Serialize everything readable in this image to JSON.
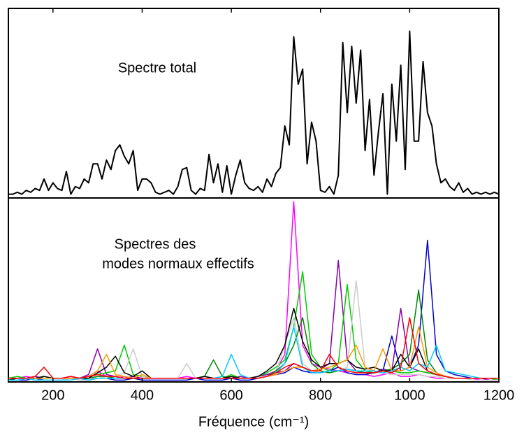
{
  "chart_data": [
    {
      "type": "line",
      "annotation": "Spectre total",
      "x": [
        100,
        110,
        120,
        130,
        140,
        150,
        160,
        170,
        180,
        190,
        200,
        210,
        220,
        230,
        240,
        250,
        260,
        270,
        280,
        290,
        300,
        310,
        320,
        330,
        340,
        350,
        360,
        370,
        380,
        390,
        400,
        410,
        420,
        430,
        440,
        450,
        460,
        470,
        480,
        490,
        500,
        510,
        520,
        530,
        540,
        550,
        560,
        570,
        580,
        590,
        600,
        610,
        620,
        630,
        640,
        650,
        660,
        670,
        680,
        690,
        700,
        710,
        720,
        730,
        740,
        750,
        760,
        770,
        780,
        790,
        800,
        810,
        820,
        830,
        840,
        850,
        860,
        870,
        880,
        890,
        900,
        910,
        920,
        930,
        940,
        950,
        960,
        970,
        980,
        990,
        1000,
        1010,
        1020,
        1030,
        1040,
        1050,
        1060,
        1070,
        1080,
        1090,
        1100,
        1110,
        1120,
        1130,
        1140,
        1150,
        1160,
        1170,
        1180,
        1190,
        1200
      ],
      "series": [
        {
          "color": "#000000",
          "values": [
            0.02,
            0.02,
            0.03,
            0.02,
            0.04,
            0.03,
            0.05,
            0.04,
            0.1,
            0.04,
            0.08,
            0.05,
            0.04,
            0.14,
            0.02,
            0.06,
            0.05,
            0.1,
            0.08,
            0.18,
            0.18,
            0.1,
            0.2,
            0.15,
            0.25,
            0.28,
            0.22,
            0.18,
            0.25,
            0.04,
            0.1,
            0.1,
            0.08,
            0.03,
            0.02,
            0.03,
            0.04,
            0.02,
            0.06,
            0.15,
            0.16,
            0.04,
            0.02,
            0.05,
            0.04,
            0.23,
            0.08,
            0.18,
            0.03,
            0.17,
            0.02,
            0.12,
            0.2,
            0.08,
            0.05,
            0.04,
            0.06,
            0.03,
            0.1,
            0.06,
            0.13,
            0.16,
            0.38,
            0.28,
            0.85,
            0.6,
            0.68,
            0.18,
            0.4,
            0.3,
            0.04,
            0.03,
            0.06,
            0.02,
            0.12,
            0.82,
            0.45,
            0.8,
            0.5,
            0.78,
            0.25,
            0.52,
            0.12,
            0.35,
            0.55,
            0.02,
            0.6,
            0.3,
            0.7,
            0.15,
            0.88,
            0.3,
            0.3,
            0.72,
            0.45,
            0.38,
            0.18,
            0.08,
            0.1,
            0.06,
            0.04,
            0.08,
            0.03,
            0.05,
            0.02,
            0.03,
            0.02,
            0.03,
            0.02,
            0.03,
            0.02
          ]
        }
      ],
      "xlim": [
        100,
        1200
      ],
      "ylim": [
        0,
        1
      ]
    },
    {
      "type": "line",
      "annotations": [
        "Spectres des",
        "modes normaux effectifs"
      ],
      "xlabel": "Fréquence (cm⁻¹)",
      "x": [
        100,
        120,
        140,
        160,
        180,
        200,
        220,
        240,
        260,
        280,
        300,
        320,
        340,
        360,
        380,
        400,
        420,
        440,
        460,
        480,
        500,
        520,
        540,
        560,
        580,
        600,
        620,
        640,
        660,
        680,
        700,
        720,
        740,
        760,
        780,
        800,
        820,
        840,
        860,
        880,
        900,
        920,
        940,
        960,
        980,
        1000,
        1020,
        1040,
        1060,
        1080,
        1100,
        1120,
        1140,
        1160,
        1180,
        1200
      ],
      "series": [
        {
          "color": "#ff00ff",
          "values": [
            0.02,
            0.02,
            0.03,
            0.02,
            0.02,
            0.02,
            0.02,
            0.03,
            0.02,
            0.03,
            0.06,
            0.03,
            0.02,
            0.03,
            0.02,
            0.02,
            0.02,
            0.02,
            0.02,
            0.02,
            0.03,
            0.02,
            0.02,
            0.02,
            0.02,
            0.02,
            0.02,
            0.02,
            0.03,
            0.04,
            0.06,
            0.15,
            0.98,
            0.2,
            0.1,
            0.08,
            0.07,
            0.06,
            0.05,
            0.04,
            0.04,
            0.03,
            0.04,
            0.05,
            0.03,
            0.03,
            0.04,
            0.03,
            0.02,
            0.02,
            0.02,
            0.02,
            0.02,
            0.01,
            0.01,
            0.01
          ]
        },
        {
          "color": "#0000cc",
          "values": [
            0.01,
            0.01,
            0.01,
            0.02,
            0.01,
            0.01,
            0.01,
            0.02,
            0.01,
            0.01,
            0.02,
            0.02,
            0.01,
            0.01,
            0.02,
            0.01,
            0.01,
            0.01,
            0.01,
            0.01,
            0.01,
            0.02,
            0.01,
            0.01,
            0.01,
            0.02,
            0.01,
            0.01,
            0.02,
            0.03,
            0.04,
            0.05,
            0.08,
            0.06,
            0.05,
            0.05,
            0.06,
            0.08,
            0.05,
            0.04,
            0.04,
            0.05,
            0.06,
            0.25,
            0.06,
            0.08,
            0.2,
            0.77,
            0.15,
            0.06,
            0.04,
            0.03,
            0.02,
            0.02,
            0.02,
            0.02
          ]
        },
        {
          "color": "#8800aa",
          "values": [
            0.02,
            0.02,
            0.02,
            0.03,
            0.02,
            0.02,
            0.02,
            0.03,
            0.02,
            0.04,
            0.18,
            0.04,
            0.03,
            0.02,
            0.03,
            0.02,
            0.02,
            0.02,
            0.02,
            0.02,
            0.02,
            0.02,
            0.02,
            0.02,
            0.02,
            0.02,
            0.03,
            0.02,
            0.03,
            0.04,
            0.05,
            0.06,
            0.1,
            0.08,
            0.06,
            0.07,
            0.1,
            0.66,
            0.12,
            0.06,
            0.05,
            0.05,
            0.07,
            0.06,
            0.4,
            0.08,
            0.06,
            0.05,
            0.04,
            0.03,
            0.02,
            0.02,
            0.02,
            0.02,
            0.01,
            0.01
          ]
        },
        {
          "color": "#00cc00",
          "values": [
            0.02,
            0.03,
            0.02,
            0.02,
            0.03,
            0.02,
            0.02,
            0.02,
            0.02,
            0.03,
            0.04,
            0.05,
            0.06,
            0.2,
            0.04,
            0.03,
            0.02,
            0.02,
            0.02,
            0.02,
            0.02,
            0.02,
            0.03,
            0.02,
            0.02,
            0.04,
            0.02,
            0.02,
            0.03,
            0.05,
            0.08,
            0.12,
            0.3,
            0.6,
            0.15,
            0.08,
            0.06,
            0.1,
            0.53,
            0.12,
            0.06,
            0.05,
            0.05,
            0.06,
            0.05,
            0.05,
            0.06,
            0.05,
            0.04,
            0.03,
            0.02,
            0.02,
            0.02,
            0.02,
            0.02,
            0.01
          ]
        },
        {
          "color": "#cccccc",
          "values": [
            0.01,
            0.01,
            0.02,
            0.01,
            0.01,
            0.01,
            0.01,
            0.02,
            0.01,
            0.01,
            0.03,
            0.02,
            0.03,
            0.05,
            0.18,
            0.03,
            0.02,
            0.02,
            0.02,
            0.02,
            0.1,
            0.02,
            0.02,
            0.02,
            0.02,
            0.02,
            0.02,
            0.02,
            0.02,
            0.03,
            0.05,
            0.2,
            0.35,
            0.1,
            0.06,
            0.05,
            0.05,
            0.06,
            0.08,
            0.55,
            0.08,
            0.05,
            0.05,
            0.04,
            0.04,
            0.04,
            0.04,
            0.03,
            0.03,
            0.02,
            0.02,
            0.02,
            0.01,
            0.01,
            0.01,
            0.01
          ]
        },
        {
          "color": "#008800",
          "values": [
            0.02,
            0.02,
            0.02,
            0.02,
            0.02,
            0.02,
            0.02,
            0.02,
            0.02,
            0.02,
            0.03,
            0.03,
            0.02,
            0.02,
            0.02,
            0.02,
            0.02,
            0.02,
            0.02,
            0.02,
            0.02,
            0.02,
            0.03,
            0.12,
            0.03,
            0.02,
            0.02,
            0.02,
            0.02,
            0.03,
            0.06,
            0.1,
            0.2,
            0.35,
            0.1,
            0.06,
            0.05,
            0.06,
            0.07,
            0.06,
            0.05,
            0.05,
            0.06,
            0.07,
            0.1,
            0.15,
            0.5,
            0.12,
            0.05,
            0.03,
            0.02,
            0.02,
            0.02,
            0.02,
            0.02,
            0.02
          ]
        },
        {
          "color": "#000000",
          "values": [
            0.01,
            0.02,
            0.02,
            0.02,
            0.03,
            0.02,
            0.02,
            0.02,
            0.02,
            0.02,
            0.05,
            0.08,
            0.14,
            0.05,
            0.03,
            0.06,
            0.02,
            0.02,
            0.02,
            0.02,
            0.02,
            0.02,
            0.03,
            0.02,
            0.02,
            0.03,
            0.02,
            0.02,
            0.03,
            0.06,
            0.1,
            0.2,
            0.4,
            0.22,
            0.12,
            0.08,
            0.1,
            0.1,
            0.12,
            0.08,
            0.07,
            0.08,
            0.06,
            0.06,
            0.15,
            0.08,
            0.18,
            0.06,
            0.04,
            0.03,
            0.02,
            0.02,
            0.02,
            0.02,
            0.02,
            0.02
          ]
        },
        {
          "color": "#ff9900",
          "values": [
            0.02,
            0.02,
            0.02,
            0.02,
            0.02,
            0.02,
            0.02,
            0.02,
            0.02,
            0.03,
            0.06,
            0.15,
            0.04,
            0.03,
            0.02,
            0.04,
            0.02,
            0.02,
            0.02,
            0.02,
            0.02,
            0.02,
            0.02,
            0.02,
            0.02,
            0.02,
            0.02,
            0.02,
            0.02,
            0.03,
            0.04,
            0.06,
            0.08,
            0.08,
            0.06,
            0.07,
            0.08,
            0.1,
            0.12,
            0.2,
            0.08,
            0.06,
            0.18,
            0.06,
            0.06,
            0.08,
            0.3,
            0.08,
            0.05,
            0.03,
            0.02,
            0.02,
            0.02,
            0.02,
            0.02,
            0.02
          ]
        },
        {
          "color": "#00ccff",
          "values": [
            0.01,
            0.01,
            0.02,
            0.01,
            0.01,
            0.01,
            0.01,
            0.01,
            0.02,
            0.01,
            0.02,
            0.02,
            0.02,
            0.02,
            0.02,
            0.02,
            0.02,
            0.02,
            0.02,
            0.02,
            0.02,
            0.02,
            0.02,
            0.02,
            0.03,
            0.15,
            0.04,
            0.02,
            0.02,
            0.03,
            0.05,
            0.1,
            0.3,
            0.08,
            0.05,
            0.05,
            0.06,
            0.06,
            0.07,
            0.06,
            0.06,
            0.06,
            0.05,
            0.06,
            0.08,
            0.06,
            0.1,
            0.08,
            0.2,
            0.06,
            0.05,
            0.04,
            0.03,
            0.02,
            0.02,
            0.02
          ]
        },
        {
          "color": "#ff0000",
          "values": [
            0.02,
            0.02,
            0.02,
            0.03,
            0.08,
            0.02,
            0.02,
            0.03,
            0.02,
            0.03,
            0.04,
            0.03,
            0.03,
            0.02,
            0.02,
            0.02,
            0.02,
            0.02,
            0.02,
            0.02,
            0.02,
            0.02,
            0.02,
            0.02,
            0.02,
            0.02,
            0.02,
            0.02,
            0.02,
            0.03,
            0.05,
            0.08,
            0.1,
            0.08,
            0.06,
            0.06,
            0.15,
            0.08,
            0.06,
            0.05,
            0.05,
            0.05,
            0.06,
            0.05,
            0.08,
            0.35,
            0.1,
            0.06,
            0.04,
            0.03,
            0.02,
            0.02,
            0.02,
            0.02,
            0.02,
            0.02
          ]
        }
      ],
      "xlim": [
        100,
        1200
      ],
      "ylim": [
        0,
        1
      ],
      "xticks": [
        200,
        400,
        600,
        800,
        1000,
        1200
      ]
    }
  ]
}
